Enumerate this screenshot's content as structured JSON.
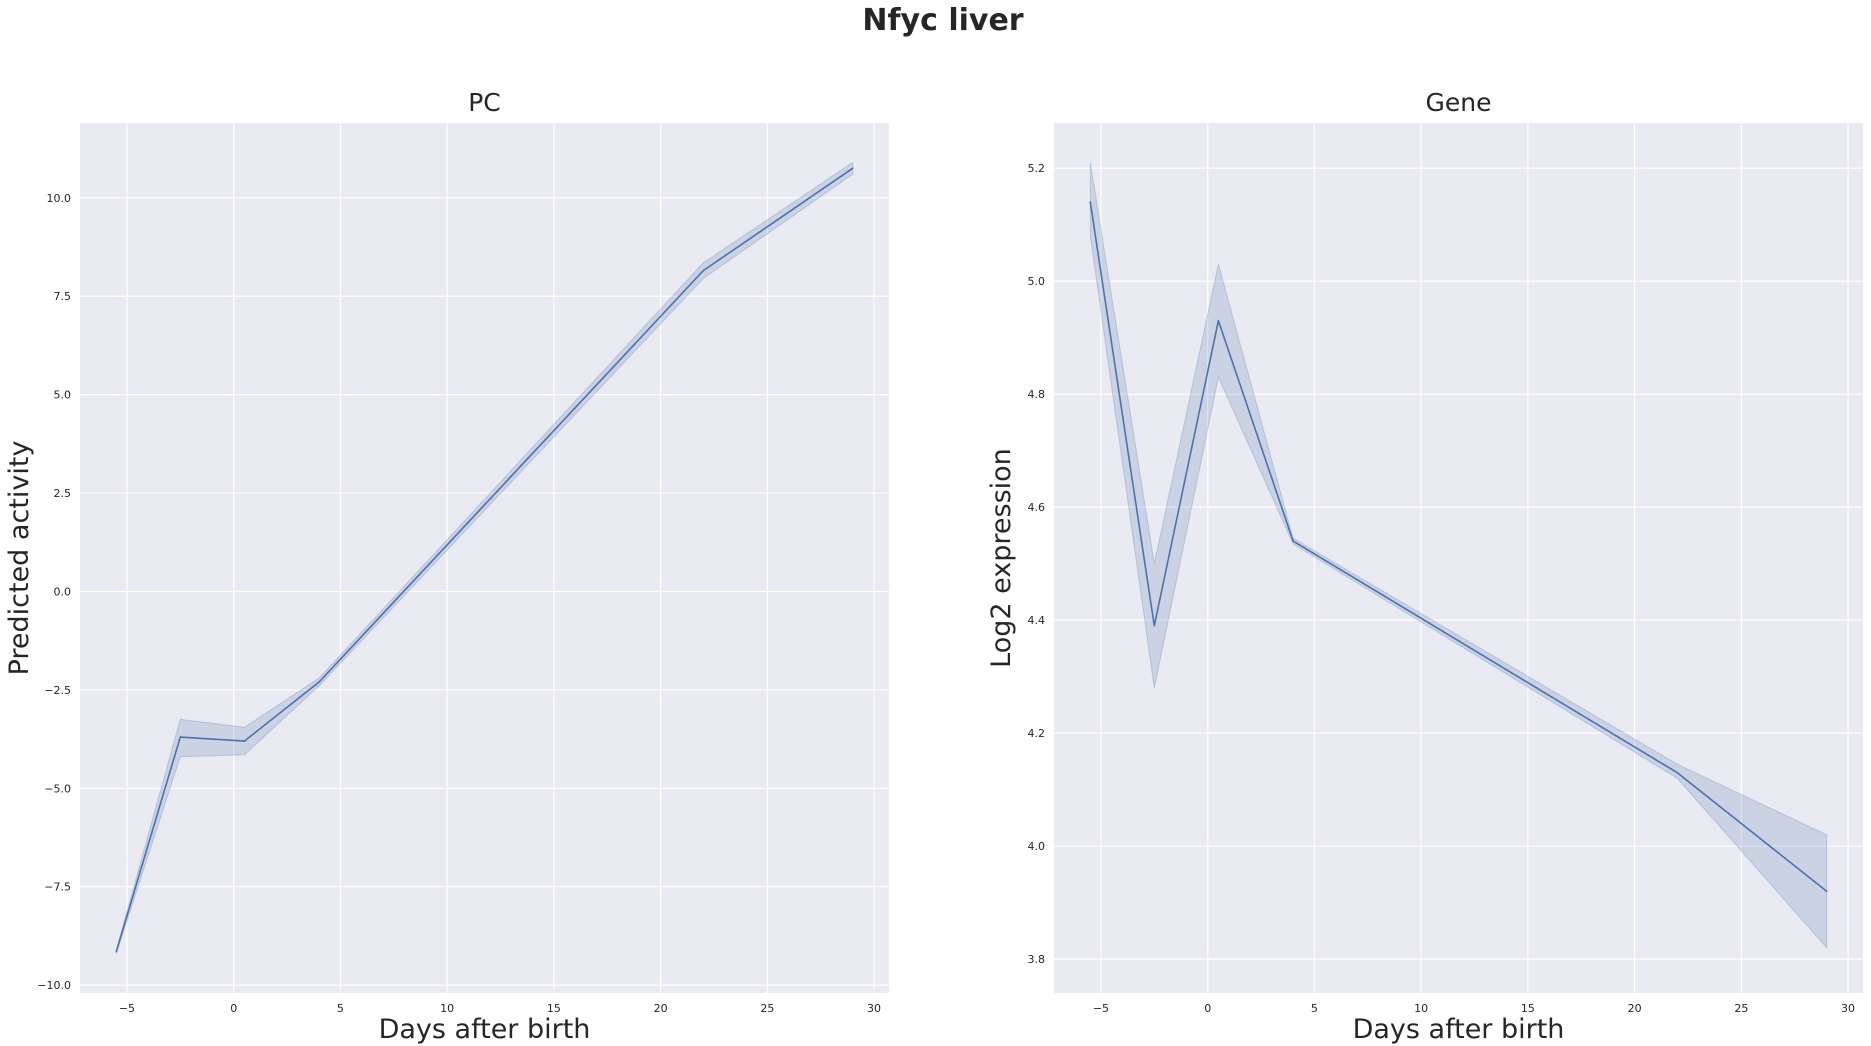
{
  "figure": {
    "suptitle": "Nfyc liver"
  },
  "chart_data": [
    {
      "type": "line",
      "title": "PC",
      "xlabel": "Days after birth",
      "ylabel": "Predicted activity",
      "xlim": [
        -7.2,
        30.7
      ],
      "ylim": [
        -10.2,
        11.9
      ],
      "xticks": [
        -5,
        0,
        5,
        10,
        15,
        20,
        25,
        30
      ],
      "xtick_labels": [
        "−5",
        "0",
        "5",
        "10",
        "15",
        "20",
        "25",
        "30"
      ],
      "yticks": [
        -10,
        -7.5,
        -5,
        -2.5,
        0,
        2.5,
        5,
        7.5,
        10
      ],
      "ytick_labels": [
        "−10.0",
        "−7.5",
        "−5.0",
        "−2.5",
        "0.0",
        "2.5",
        "5.0",
        "7.5",
        "10.0"
      ],
      "grid": true,
      "series": [
        {
          "x": [
            -5.5,
            -2.5,
            0.5,
            4,
            22,
            29
          ],
          "values": [
            -9.15,
            -3.7,
            -3.8,
            -2.3,
            8.15,
            10.75
          ],
          "ci_low": [
            -9.2,
            -4.2,
            -4.15,
            -2.4,
            7.95,
            10.6
          ],
          "ci_high": [
            -9.1,
            -3.25,
            -3.45,
            -2.2,
            8.35,
            10.9
          ],
          "color": "#4c72b0"
        }
      ]
    },
    {
      "type": "line",
      "title": "Gene",
      "xlabel": "Days after birth",
      "ylabel": "Log2 expression",
      "xlim": [
        -7.2,
        30.7
      ],
      "ylim": [
        3.74,
        5.28
      ],
      "xticks": [
        -5,
        0,
        5,
        10,
        15,
        20,
        25,
        30
      ],
      "xtick_labels": [
        "−5",
        "0",
        "5",
        "10",
        "15",
        "20",
        "25",
        "30"
      ],
      "yticks": [
        3.8,
        4.0,
        4.2,
        4.4,
        4.6,
        4.8,
        5.0,
        5.2
      ],
      "ytick_labels": [
        "3.8",
        "4.0",
        "4.2",
        "4.4",
        "4.6",
        "4.8",
        "5.0",
        "5.2"
      ],
      "grid": true,
      "series": [
        {
          "x": [
            -5.5,
            -2.5,
            0.5,
            4,
            22,
            29
          ],
          "values": [
            5.14,
            4.39,
            4.93,
            4.54,
            4.13,
            3.92
          ],
          "ci_low": [
            5.08,
            4.28,
            4.83,
            4.535,
            4.12,
            3.82
          ],
          "ci_high": [
            5.21,
            4.5,
            5.03,
            4.545,
            4.145,
            4.02
          ],
          "color": "#4c72b0"
        }
      ]
    }
  ],
  "colors": {
    "axes_bg": "#eaeaf2",
    "grid": "#ffffff",
    "line": "#4c72b0"
  }
}
